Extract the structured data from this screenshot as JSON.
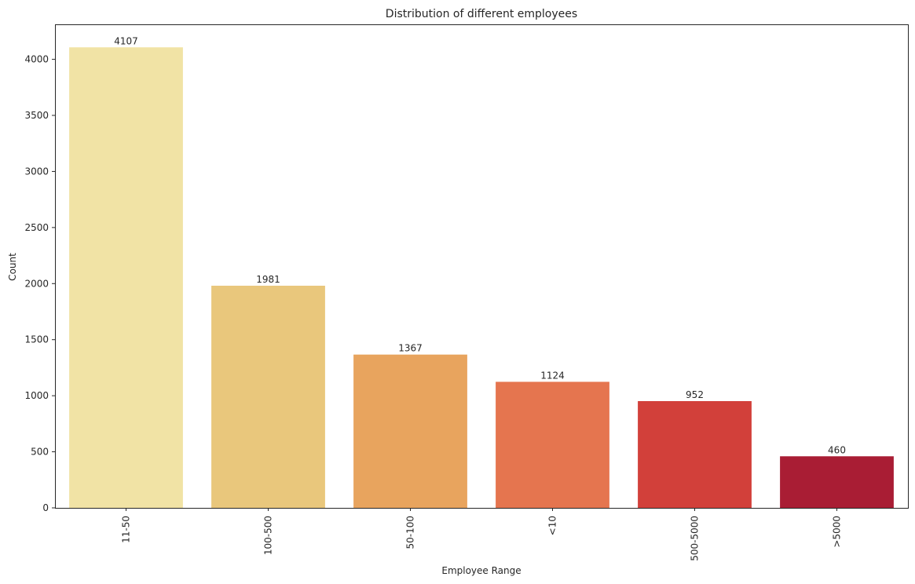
{
  "chart_data": {
    "type": "bar",
    "title": "Distribution of different employees",
    "xlabel": "Employee Range",
    "ylabel": "Count",
    "categories": [
      "11-50",
      "100-500",
      "50-100",
      "<10",
      "500-5000",
      ">5000"
    ],
    "values": [
      4107,
      1981,
      1367,
      1124,
      952,
      460
    ],
    "data_labels": [
      "4107",
      "1981",
      "1367",
      "1124",
      "952",
      "460"
    ],
    "colors": [
      "#f1e3a5",
      "#e9c77c",
      "#e8a45e",
      "#e5754f",
      "#d2403a",
      "#a91d34"
    ],
    "ylim": [
      0,
      4312
    ],
    "yticks": [
      0,
      500,
      1000,
      1500,
      2000,
      2500,
      3000,
      3500,
      4000
    ],
    "grid": false,
    "x_tick_rotation": "vertical"
  }
}
